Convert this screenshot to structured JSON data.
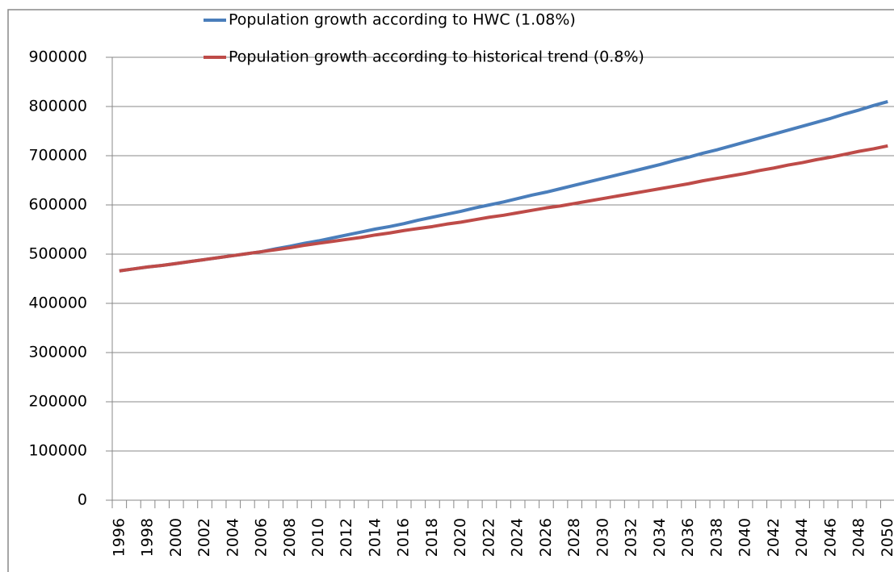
{
  "chart_data": {
    "type": "line",
    "categories": [
      "1996",
      null,
      "1998",
      null,
      "2000",
      null,
      "2002",
      null,
      "2004",
      null,
      "2006",
      null,
      "2008",
      null,
      "2010",
      null,
      "2012",
      null,
      "2014",
      null,
      "2016",
      null,
      "2018",
      null,
      "2020",
      null,
      "2022",
      null,
      "2024",
      null,
      "2026",
      null,
      "2028",
      null,
      "2030",
      null,
      "2032",
      null,
      "2034",
      null,
      "2036",
      null,
      "2038",
      null,
      "2040",
      null,
      "2042",
      null,
      "2044",
      null,
      "2046",
      null,
      "2048",
      null,
      "2050"
    ],
    "series": [
      {
        "name": "Population growth according to HWC (1.08%)",
        "color": "#4a7ebb",
        "values": [
          466000,
          470000,
          474000,
          477000,
          481000,
          485000,
          489000,
          493000,
          497000,
          501000,
          505000,
          511000,
          516000,
          522000,
          527000,
          533000,
          539000,
          545000,
          551000,
          556000,
          562000,
          569000,
          575000,
          581000,
          587000,
          594000,
          600000,
          606000,
          613000,
          620000,
          626000,
          633000,
          640000,
          647000,
          654000,
          661000,
          668000,
          675000,
          682000,
          690000,
          697000,
          705000,
          712000,
          720000,
          728000,
          736000,
          744000,
          752000,
          760000,
          768000,
          776000,
          785000,
          793000,
          802000,
          810000
        ]
      },
      {
        "name": "Population growth according to historical trend (0.8%)",
        "color": "#be4b48",
        "values": [
          466000,
          470000,
          474000,
          477000,
          481000,
          485000,
          489000,
          493000,
          497000,
          501000,
          505000,
          509000,
          513000,
          518000,
          522000,
          526000,
          530000,
          534000,
          539000,
          543000,
          548000,
          552000,
          556000,
          561000,
          565000,
          570000,
          575000,
          579000,
          584000,
          589000,
          594000,
          598000,
          603000,
          608000,
          613000,
          618000,
          623000,
          628000,
          633000,
          638000,
          643000,
          649000,
          654000,
          659000,
          664000,
          670000,
          675000,
          681000,
          686000,
          692000,
          697000,
          703000,
          709000,
          714000,
          720000
        ]
      }
    ],
    "ylim": [
      0,
      900000
    ],
    "yticks": [
      0,
      100000,
      200000,
      300000,
      400000,
      500000,
      600000,
      700000,
      800000,
      900000
    ],
    "grid": true
  }
}
